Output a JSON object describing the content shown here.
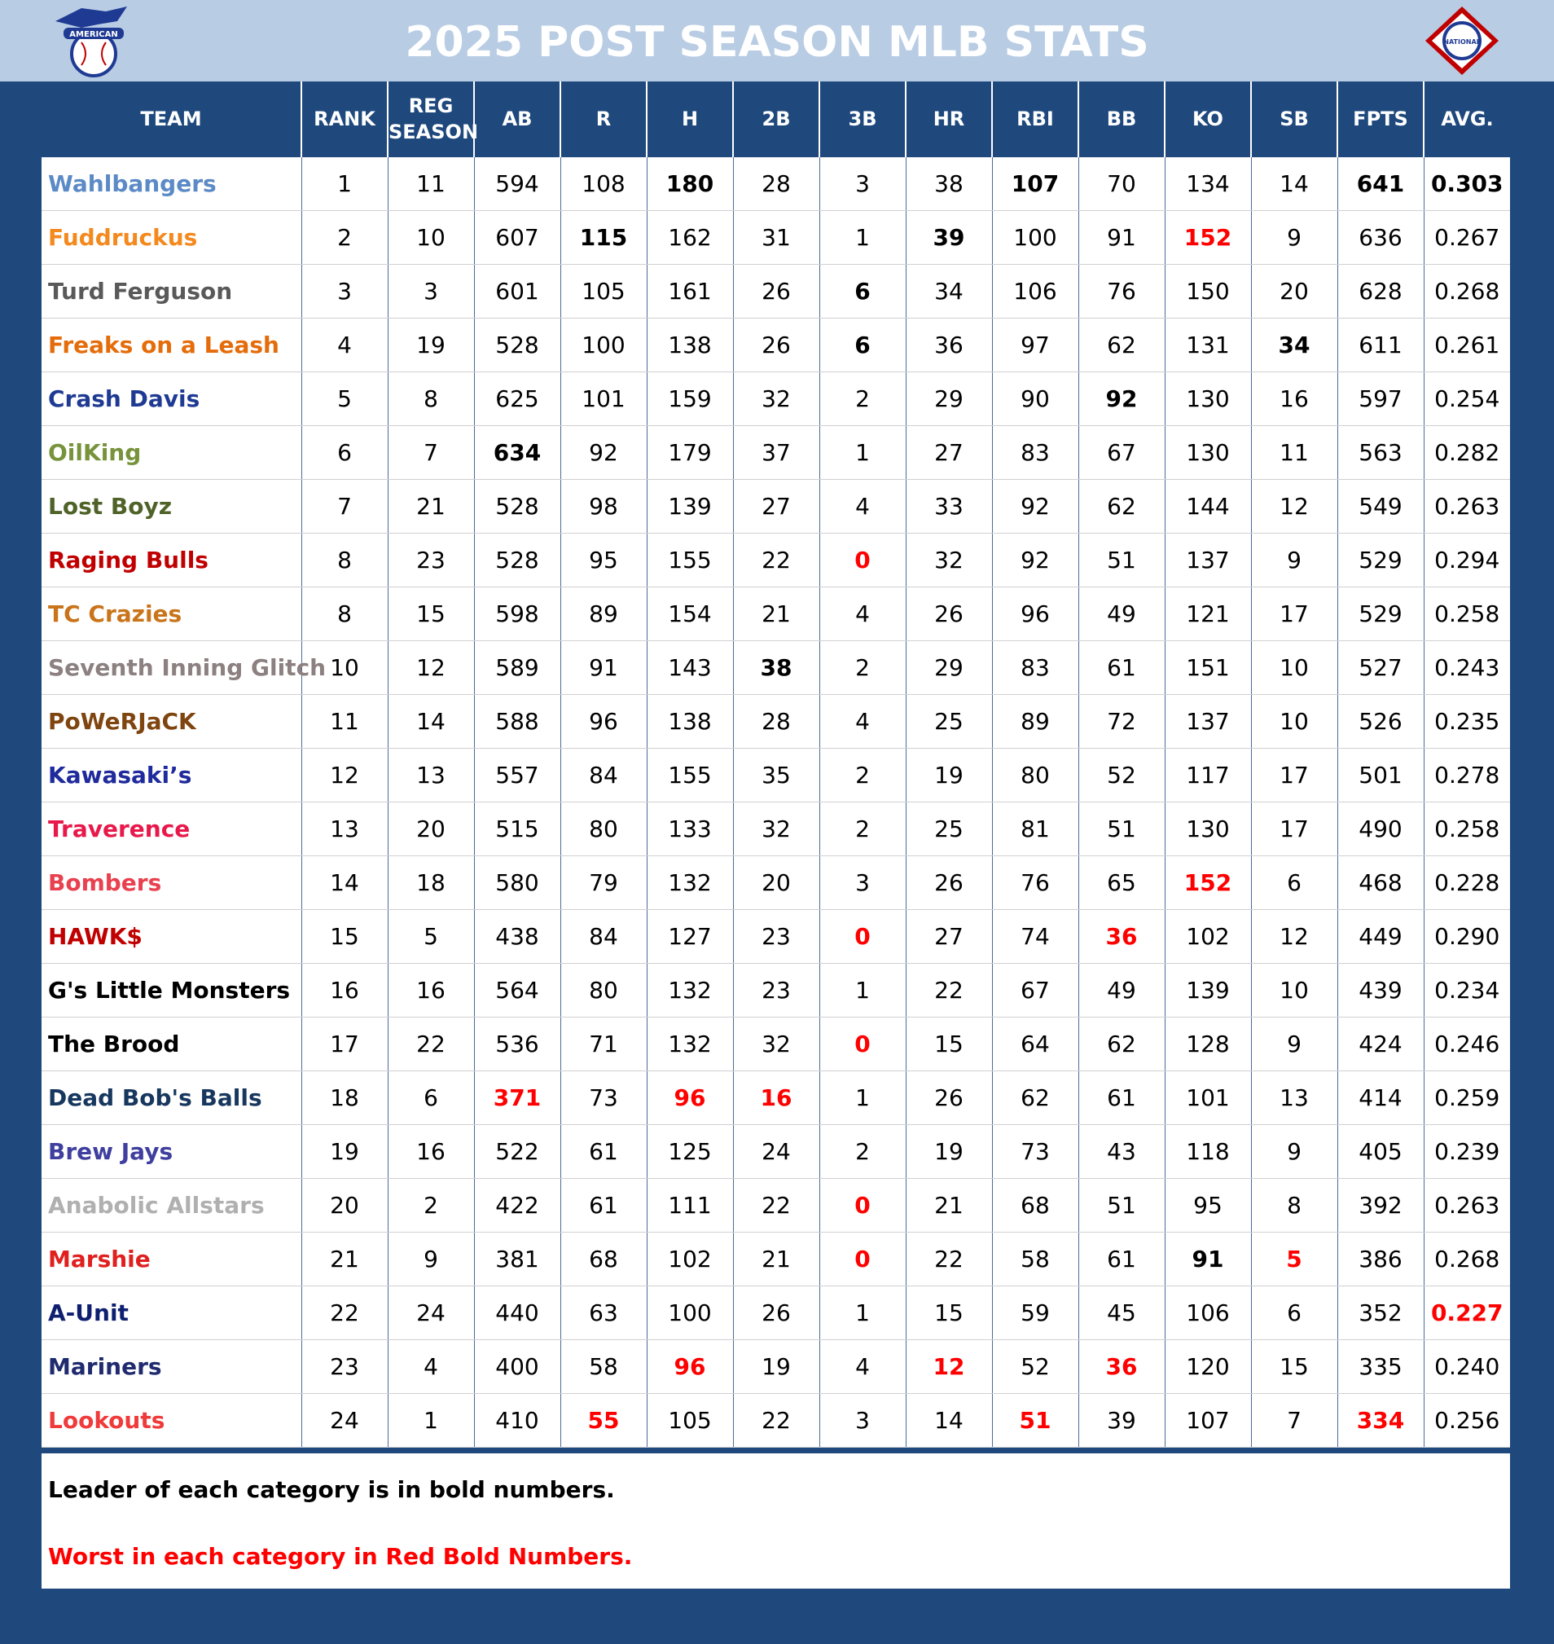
{
  "header": {
    "title": "2025 POST SEASON MLB STATS",
    "left_logo": "AMERICAN",
    "right_logo": "NATIONAL"
  },
  "table": {
    "columns": [
      "TEAM",
      "RANK",
      "REG SEASON",
      "AB",
      "R",
      "H",
      "2B",
      "3B",
      "HR",
      "RBI",
      "BB",
      "KO",
      "SB",
      "FPTS",
      "AVG."
    ],
    "rows": [
      {
        "team": "Wahlbangers",
        "color": "#5b8ac6",
        "cells": [
          1,
          11,
          594,
          108,
          180,
          28,
          3,
          38,
          107,
          70,
          134,
          14,
          641,
          "0.303"
        ],
        "bold": [
          "H",
          "RBI",
          "FPTS",
          "AVG."
        ],
        "red": []
      },
      {
        "team": "Fuddruckus",
        "color": "#f4891e",
        "cells": [
          2,
          10,
          607,
          115,
          162,
          31,
          1,
          39,
          100,
          91,
          152,
          9,
          636,
          "0.267"
        ],
        "bold": [
          "R",
          "HR"
        ],
        "red": [
          "KO"
        ]
      },
      {
        "team": "Turd Ferguson",
        "color": "#595959",
        "cells": [
          3,
          3,
          601,
          105,
          161,
          26,
          6,
          34,
          106,
          76,
          150,
          20,
          628,
          "0.268"
        ],
        "bold": [
          "3B"
        ],
        "red": []
      },
      {
        "team": "Freaks on a Leash",
        "color": "#e46c0a",
        "cells": [
          4,
          19,
          528,
          100,
          138,
          26,
          6,
          36,
          97,
          62,
          131,
          34,
          611,
          "0.261"
        ],
        "bold": [
          "3B",
          "SB"
        ],
        "red": []
      },
      {
        "team": "Crash Davis",
        "color": "#1f3a93",
        "cells": [
          5,
          8,
          625,
          101,
          159,
          32,
          2,
          29,
          90,
          92,
          130,
          16,
          597,
          "0.254"
        ],
        "bold": [
          "BB"
        ],
        "red": []
      },
      {
        "team": "OilKing",
        "color": "#77933c",
        "cells": [
          6,
          7,
          634,
          92,
          179,
          37,
          1,
          27,
          83,
          67,
          130,
          11,
          563,
          "0.282"
        ],
        "bold": [
          "AB"
        ],
        "red": []
      },
      {
        "team": "Lost Boyz",
        "color": "#4f6228",
        "cells": [
          7,
          21,
          528,
          98,
          139,
          27,
          4,
          33,
          92,
          62,
          144,
          12,
          549,
          "0.263"
        ],
        "bold": [],
        "red": []
      },
      {
        "team": "Raging Bulls",
        "color": "#c00000",
        "cells": [
          8,
          23,
          528,
          95,
          155,
          22,
          0,
          32,
          92,
          51,
          137,
          9,
          529,
          "0.294"
        ],
        "bold": [],
        "red": [
          "3B"
        ]
      },
      {
        "team": "TC Crazies",
        "color": "#c9741a",
        "cells": [
          8,
          15,
          598,
          89,
          154,
          21,
          4,
          26,
          96,
          49,
          121,
          17,
          529,
          "0.258"
        ],
        "bold": [],
        "red": []
      },
      {
        "team": "Seventh Inning Glitch",
        "color": "#8c8080",
        "cells": [
          10,
          12,
          589,
          91,
          143,
          38,
          2,
          29,
          83,
          61,
          151,
          10,
          527,
          "0.243"
        ],
        "bold": [
          "2B"
        ],
        "red": []
      },
      {
        "team": "PoWeRJaCK",
        "color": "#7f4510",
        "cells": [
          11,
          14,
          588,
          96,
          138,
          28,
          4,
          25,
          89,
          72,
          137,
          10,
          526,
          "0.235"
        ],
        "bold": [],
        "red": []
      },
      {
        "team": "Kawasaki’s",
        "color": "#1f2a9c",
        "cells": [
          12,
          13,
          557,
          84,
          155,
          35,
          2,
          19,
          80,
          52,
          117,
          17,
          501,
          "0.278"
        ],
        "bold": [],
        "red": []
      },
      {
        "team": "Traverence",
        "color": "#e8194a",
        "cells": [
          13,
          20,
          515,
          80,
          133,
          32,
          2,
          25,
          81,
          51,
          130,
          17,
          490,
          "0.258"
        ],
        "bold": [],
        "red": []
      },
      {
        "team": "Bombers",
        "color": "#e8414f",
        "cells": [
          14,
          18,
          580,
          79,
          132,
          20,
          3,
          26,
          76,
          65,
          152,
          6,
          468,
          "0.228"
        ],
        "bold": [],
        "red": [
          "KO"
        ]
      },
      {
        "team": "HAWK$",
        "color": "#c00000",
        "cells": [
          15,
          5,
          438,
          84,
          127,
          23,
          0,
          27,
          74,
          36,
          102,
          12,
          449,
          "0.290"
        ],
        "bold": [],
        "red": [
          "3B",
          "BB"
        ]
      },
      {
        "team": "G's Little Monsters",
        "color": "#000000",
        "cells": [
          16,
          16,
          564,
          80,
          132,
          23,
          1,
          22,
          67,
          49,
          139,
          10,
          439,
          "0.234"
        ],
        "bold": [],
        "red": []
      },
      {
        "team": "The Brood",
        "color": "#000000",
        "cells": [
          17,
          22,
          536,
          71,
          132,
          32,
          0,
          15,
          64,
          62,
          128,
          9,
          424,
          "0.246"
        ],
        "bold": [],
        "red": [
          "3B"
        ]
      },
      {
        "team": "Dead Bob's Balls",
        "color": "#17375e",
        "cells": [
          18,
          6,
          371,
          73,
          96,
          16,
          1,
          26,
          62,
          61,
          101,
          13,
          414,
          "0.259"
        ],
        "bold": [],
        "red": [
          "AB",
          "H",
          "2B"
        ]
      },
      {
        "team": "Brew Jays",
        "color": "#3f3f9f",
        "cells": [
          19,
          16,
          522,
          61,
          125,
          24,
          2,
          19,
          73,
          43,
          118,
          9,
          405,
          "0.239"
        ],
        "bold": [],
        "red": []
      },
      {
        "team": "Anabolic Allstars",
        "color": "#b0b0b0",
        "cells": [
          20,
          2,
          422,
          61,
          111,
          22,
          0,
          21,
          68,
          51,
          95,
          8,
          392,
          "0.263"
        ],
        "bold": [],
        "red": [
          "3B"
        ]
      },
      {
        "team": "Marshie",
        "color": "#e0201e",
        "cells": [
          21,
          9,
          381,
          68,
          102,
          21,
          0,
          22,
          58,
          61,
          91,
          5,
          386,
          "0.268"
        ],
        "bold": [
          "KO"
        ],
        "red": [
          "3B",
          "SB"
        ]
      },
      {
        "team": "A-Unit",
        "color": "#0f1f6f",
        "cells": [
          22,
          24,
          440,
          63,
          100,
          26,
          1,
          15,
          59,
          45,
          106,
          6,
          352,
          "0.227"
        ],
        "bold": [],
        "red": [
          "AVG."
        ]
      },
      {
        "team": "Mariners",
        "color": "#1f2a6f",
        "cells": [
          23,
          4,
          400,
          58,
          96,
          19,
          4,
          12,
          52,
          36,
          120,
          15,
          335,
          "0.240"
        ],
        "bold": [],
        "red": [
          "H",
          "HR",
          "BB"
        ]
      },
      {
        "team": "Lookouts",
        "color": "#ef3b3b",
        "cells": [
          24,
          1,
          410,
          55,
          105,
          22,
          3,
          14,
          51,
          39,
          107,
          7,
          334,
          "0.256"
        ],
        "bold": [],
        "red": [
          "R",
          "RBI",
          "FPTS"
        ]
      }
    ]
  },
  "notes": {
    "leader": "Leader of each category is in bold numbers.",
    "worst": "Worst in each category in Red Bold Numbers."
  }
}
